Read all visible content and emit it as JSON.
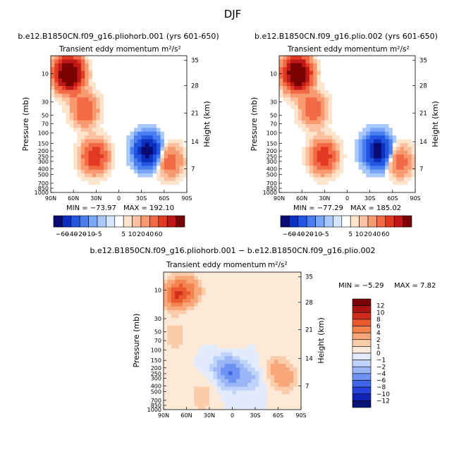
{
  "figure_title": "DJF",
  "colors": {
    "left_palette": [
      "#0a0a73",
      "#0b2fbf",
      "#2255e0",
      "#4a7ef0",
      "#7aa6f7",
      "#a9c8fb",
      "#d4e5fd",
      "#ffffff",
      "#fde4cd",
      "#fbc1a1",
      "#f8996f",
      "#f26a45",
      "#e23a22",
      "#c01818",
      "#7a0303"
    ],
    "diff_palette": [
      "#061377",
      "#1223b4",
      "#2543db",
      "#3d68eb",
      "#6e94f3",
      "#9ab6f7",
      "#c0d4fb",
      "#e2ebfd",
      "#fde9d8",
      "#fbcca9",
      "#f8a77a",
      "#f4844f",
      "#ea5a2e",
      "#d22b1b",
      "#a81410",
      "#7a0303"
    ]
  },
  "chart_data": [
    {
      "type": "heatmap",
      "panel_title": "b.e12.B1850CN.f09_g16.pliohorb.001 (yrs 601-650)",
      "title": "Transient eddy momentum",
      "units": "m²/s²",
      "ylabel": "Pressure (mb)",
      "ylabel_right": "Height (km)",
      "x_ticks": [
        "90N",
        "60N",
        "30N",
        "0",
        "30S",
        "60S",
        "90S"
      ],
      "y_ticks": [
        "10",
        "30",
        "50",
        "70",
        "100",
        "150",
        "200",
        "250",
        "300",
        "400",
        "500",
        "700",
        "850",
        "1000"
      ],
      "height_ticks": [
        "35",
        "28",
        "21",
        "14",
        "7"
      ],
      "ylim": [
        1000,
        5
      ],
      "min_label": "MIN = −73.97",
      "max_label": "MAX = 192.10",
      "min": -73.97,
      "max": 192.1,
      "colorbar_ticks": [
        "−60",
        "−40",
        "−20",
        "−10",
        "−5",
        "5",
        "10",
        "20",
        "40",
        "60"
      ],
      "features": [
        {
          "lat": 66,
          "p": 10,
          "value": 192.1
        },
        {
          "lat": 45,
          "p": 40,
          "value": 40
        },
        {
          "lat": 32,
          "p": 250,
          "value": 60
        },
        {
          "lat": -38,
          "p": 200,
          "value": -73.97
        },
        {
          "lat": -68,
          "p": 300,
          "value": 30
        }
      ]
    },
    {
      "type": "heatmap",
      "panel_title": "b.e12.B1850CN.f09_g16.plio.002 (yrs 601-650)",
      "title": "Transient eddy momentum",
      "units": "m²/s²",
      "ylabel": "Pressure (mb)",
      "ylabel_right": "Height (km)",
      "x_ticks": [
        "90N",
        "60N",
        "30N",
        "0",
        "30S",
        "60S",
        "90S"
      ],
      "y_ticks": [
        "10",
        "30",
        "50",
        "70",
        "100",
        "150",
        "200",
        "250",
        "300",
        "400",
        "500",
        "700",
        "850",
        "1000"
      ],
      "height_ticks": [
        "35",
        "28",
        "21",
        "14",
        "7"
      ],
      "ylim": [
        1000,
        5
      ],
      "min_label": "MIN = −77.29",
      "max_label": "MAX = 185.02",
      "min": -77.29,
      "max": 185.02,
      "colorbar_ticks": [
        "−60",
        "−40",
        "−20",
        "−10",
        "−5",
        "5",
        "10",
        "20",
        "40",
        "60"
      ],
      "features": [
        {
          "lat": 66,
          "p": 10,
          "value": 185.0
        },
        {
          "lat": 45,
          "p": 40,
          "value": 38
        },
        {
          "lat": 31,
          "p": 250,
          "value": 58
        },
        {
          "lat": -40,
          "p": 200,
          "value": -77.29
        },
        {
          "lat": -70,
          "p": 300,
          "value": 28
        }
      ]
    },
    {
      "type": "heatmap",
      "panel_title": "b.e12.B1850CN.f09_g16.pliohorb.001 − b.e12.B1850CN.f09_g16.plio.002",
      "title": "Transient eddy momentum",
      "units": "m²/s²",
      "ylabel": "Pressure (mb)",
      "ylabel_right": "Height (km)",
      "x_ticks": [
        "90N",
        "60N",
        "30N",
        "0",
        "30S",
        "60S",
        "90S"
      ],
      "y_ticks": [
        "10",
        "30",
        "50",
        "70",
        "100",
        "150",
        "200",
        "250",
        "300",
        "400",
        "500",
        "700",
        "850",
        "1000"
      ],
      "height_ticks": [
        "35",
        "28",
        "21",
        "14",
        "7"
      ],
      "ylim": [
        1000,
        5
      ],
      "min_label": "MIN = −5.29",
      "max_label": "MAX =   7.82",
      "min": -5.29,
      "max": 7.82,
      "colorbar_ticks": [
        "12",
        "10",
        "8",
        "6",
        "4",
        "2",
        "1",
        "0",
        "−1",
        "−2",
        "−4",
        "−6",
        "−8",
        "−10",
        "−12"
      ],
      "features": [
        {
          "lat": 74,
          "p": 12,
          "value": 7.82
        },
        {
          "lat": 55,
          "p": 10,
          "value": 4
        },
        {
          "lat": 75,
          "p": 60,
          "value": 2
        },
        {
          "lat": 15,
          "p": 200,
          "value": -2
        },
        {
          "lat": 0,
          "p": 250,
          "value": -5.29
        },
        {
          "lat": -25,
          "p": 300,
          "value": -2
        },
        {
          "lat": -70,
          "p": 300,
          "value": 3
        },
        {
          "lat": -55,
          "p": 200,
          "value": 2
        },
        {
          "lat": 40,
          "p": 600,
          "value": 2
        },
        {
          "lat": 5,
          "p": 60,
          "value": 1
        }
      ]
    }
  ]
}
